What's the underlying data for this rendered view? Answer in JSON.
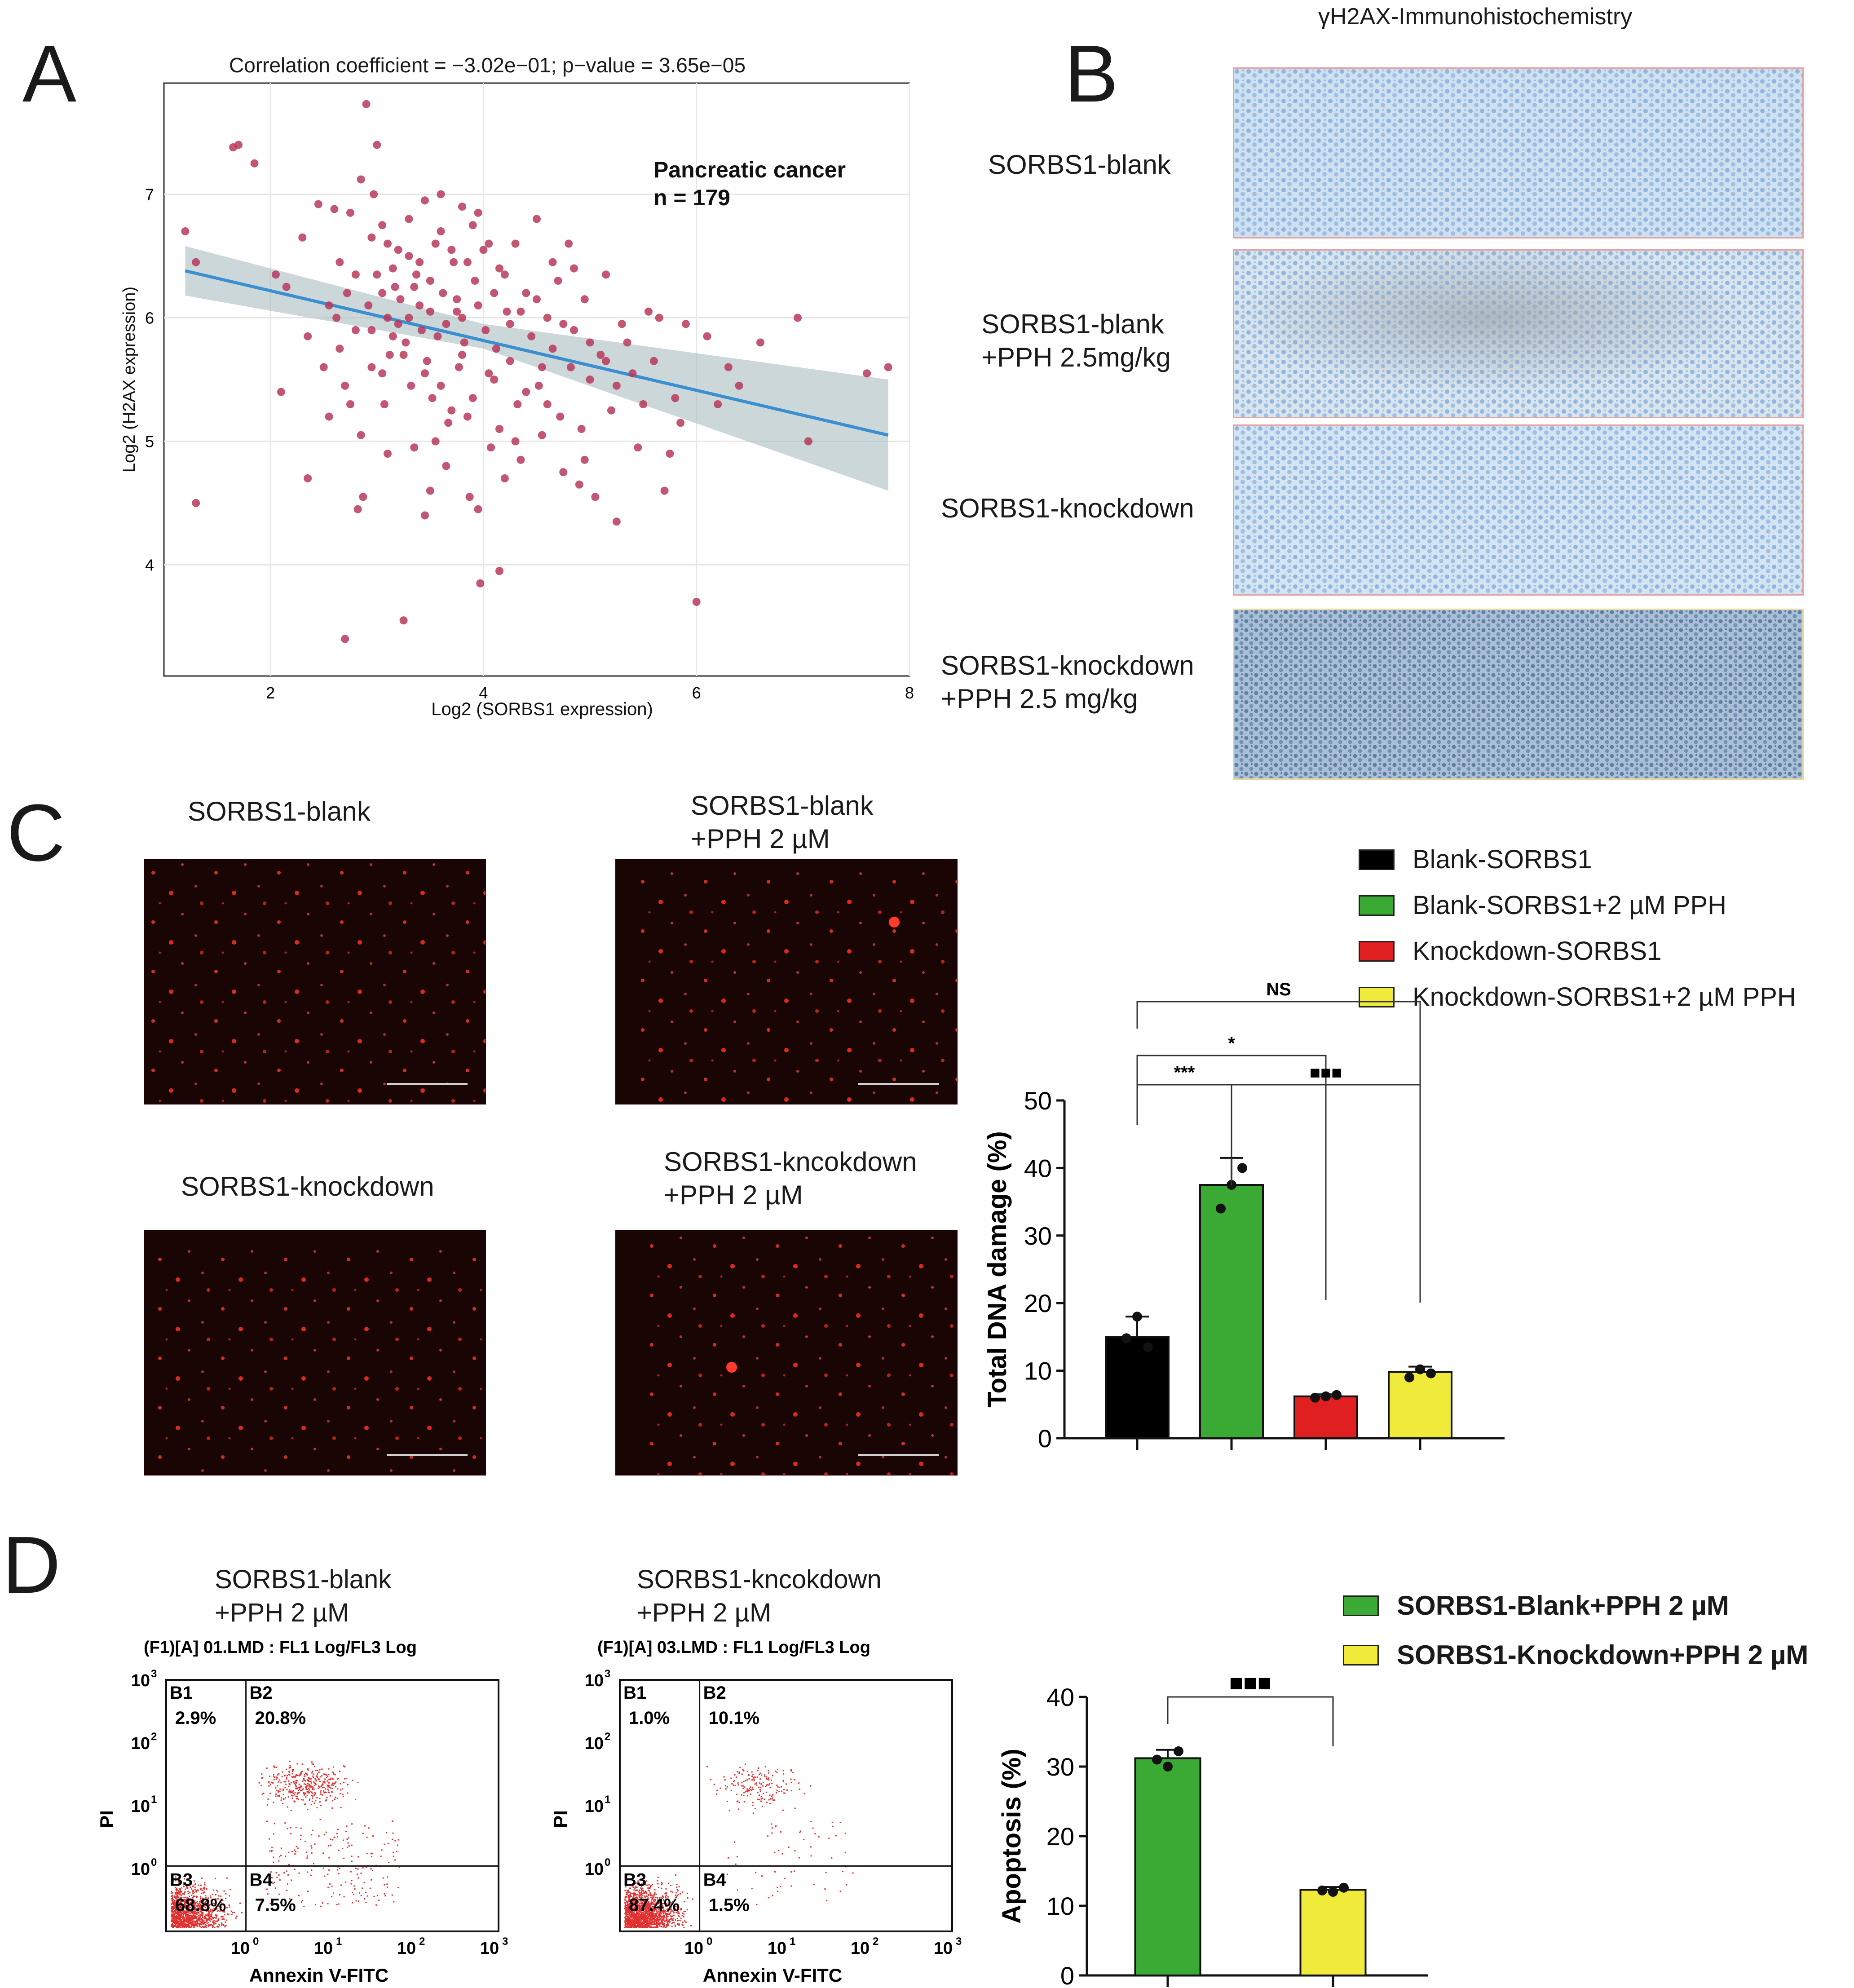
{
  "panels": {
    "a": "A",
    "b": "B",
    "c": "C",
    "d": "D"
  },
  "panel_a": {
    "title": "Correlation coefficient = −3.02e−01; p−value = 3.65e−05",
    "annotation_line1": "Pancreatic cancer",
    "annotation_line2": "n = 179",
    "ylabel": "Log2 (H2AX expression)",
    "xlabel": "Log2 (SORBS1 expression)"
  },
  "panel_b": {
    "header": "γH2AX-Immunohistochemistry",
    "rows": [
      {
        "line1": "SORBS1-blank",
        "line2": ""
      },
      {
        "line1": "SORBS1-blank",
        "line2": "+PPH 2.5mg/kg"
      },
      {
        "line1": "SORBS1-knockdown",
        "line2": ""
      },
      {
        "line1": "SORBS1-knockdown",
        "line2": "+PPH 2.5 mg/kg"
      }
    ]
  },
  "panel_c": {
    "images": [
      {
        "line1": "SORBS1-blank",
        "line2": ""
      },
      {
        "line1": "SORBS1-blank",
        "line2": "+PPH 2 µM"
      },
      {
        "line1": "SORBS1-knockdown",
        "line2": ""
      },
      {
        "line1": "SORBS1-kncokdown",
        "line2": "+PPH 2 µM"
      }
    ],
    "legend": [
      {
        "label": "Blank-SORBS1",
        "color": "#000000"
      },
      {
        "label": "Blank-SORBS1+2 µM PPH",
        "color": "#3aaa35"
      },
      {
        "label": "Knockdown-SORBS1",
        "color": "#e02020"
      },
      {
        "label": "Knockdown-SORBS1+2 µM PPH",
        "color": "#f0ea3a"
      }
    ]
  },
  "panel_d": {
    "plots": [
      {
        "line1": "SORBS1-blank",
        "line2": "+PPH 2 µM",
        "file": "(F1)[A] 01.LMD : FL1 Log/FL3 Log",
        "q": {
          "B1": "2.9%",
          "B2": "20.8%",
          "B3": "68.8%",
          "B4": "7.5%"
        }
      },
      {
        "line1": "SORBS1-kncokdown",
        "line2": "+PPH 2 µM",
        "file": "(F1)[A] 03.LMD : FL1 Log/FL3 Log",
        "q": {
          "B1": "1.0%",
          "B2": "10.1%",
          "B3": "87.4%",
          "B4": "1.5%"
        }
      }
    ],
    "quadrant_names": {
      "b1": "B1",
      "b2": "B2",
      "b3": "B3",
      "b4": "B4"
    },
    "flow_xlabel": "Annexin V-FITC",
    "flow_ylabel": "PI",
    "legend": [
      {
        "label": "SORBS1-Blank+PPH 2 µM",
        "color": "#3aaa35"
      },
      {
        "label": "SORBS1-Knockdown+PPH 2 µM",
        "color": "#f0ea3a"
      }
    ]
  },
  "chart_data": [
    {
      "id": "scatter",
      "type": "scatter",
      "title": "Correlation coefficient = −3.02e−01; p−value = 3.65e−05",
      "xlabel": "Log2 (SORBS1 expression)",
      "ylabel": "Log2 (H2AX expression)",
      "xlim": [
        1.0,
        8.0
      ],
      "ylim": [
        3.1,
        7.9
      ],
      "xticks": [
        "2",
        "4",
        "6",
        "8"
      ],
      "yticks": [
        "4",
        "5",
        "6",
        "7"
      ],
      "fit": {
        "x": [
          1.2,
          7.8
        ],
        "y": [
          6.38,
          5.05
        ]
      },
      "points": [
        [
          1.2,
          6.7
        ],
        [
          1.3,
          4.5
        ],
        [
          1.65,
          7.38
        ],
        [
          1.7,
          7.4
        ],
        [
          1.85,
          7.25
        ],
        [
          2.05,
          6.35
        ],
        [
          2.15,
          6.25
        ],
        [
          2.3,
          6.65
        ],
        [
          2.35,
          5.85
        ],
        [
          2.35,
          4.7
        ],
        [
          2.45,
          6.92
        ],
        [
          2.55,
          6.1
        ],
        [
          2.6,
          6.88
        ],
        [
          2.62,
          6.0
        ],
        [
          2.65,
          5.75
        ],
        [
          2.7,
          5.45
        ],
        [
          2.7,
          3.4
        ],
        [
          2.72,
          6.2
        ],
        [
          2.75,
          6.85
        ],
        [
          2.8,
          5.9
        ],
        [
          2.82,
          4.45
        ],
        [
          2.85,
          7.12
        ],
        [
          2.85,
          5.05
        ],
        [
          2.87,
          4.55
        ],
        [
          2.9,
          7.73
        ],
        [
          2.92,
          6.1
        ],
        [
          2.95,
          5.9
        ],
        [
          2.97,
          7.0
        ],
        [
          3.0,
          7.4
        ],
        [
          3.0,
          6.35
        ],
        [
          3.05,
          6.2
        ],
        [
          3.05,
          5.55
        ],
        [
          3.07,
          5.3
        ],
        [
          3.1,
          6.6
        ],
        [
          3.1,
          6.0
        ],
        [
          3.12,
          5.7
        ],
        [
          3.15,
          6.4
        ],
        [
          3.17,
          6.25
        ],
        [
          3.2,
          5.95
        ],
        [
          3.22,
          6.15
        ],
        [
          3.25,
          5.7
        ],
        [
          3.27,
          5.8
        ],
        [
          3.3,
          6.8
        ],
        [
          3.3,
          6.5
        ],
        [
          3.32,
          5.45
        ],
        [
          3.35,
          4.95
        ],
        [
          3.37,
          6.35
        ],
        [
          3.4,
          6.1
        ],
        [
          3.42,
          5.9
        ],
        [
          3.45,
          6.95
        ],
        [
          3.45,
          4.4
        ],
        [
          3.47,
          5.65
        ],
        [
          3.5,
          6.3
        ],
        [
          3.5,
          6.05
        ],
        [
          3.52,
          5.35
        ],
        [
          3.55,
          6.6
        ],
        [
          3.57,
          5.85
        ],
        [
          3.6,
          7.0
        ],
        [
          3.6,
          6.7
        ],
        [
          3.62,
          6.2
        ],
        [
          3.65,
          5.95
        ],
        [
          3.67,
          5.15
        ],
        [
          3.7,
          6.55
        ],
        [
          3.72,
          6.45
        ],
        [
          3.75,
          6.15
        ],
        [
          3.77,
          5.6
        ],
        [
          3.8,
          6.9
        ],
        [
          3.8,
          6.0
        ],
        [
          3.82,
          5.8
        ],
        [
          3.85,
          5.2
        ],
        [
          3.87,
          4.55
        ],
        [
          3.9,
          6.75
        ],
        [
          3.92,
          6.3
        ],
        [
          3.95,
          6.1
        ],
        [
          3.95,
          4.45
        ],
        [
          3.97,
          3.85
        ],
        [
          4.0,
          6.55
        ],
        [
          4.02,
          5.9
        ],
        [
          4.05,
          5.55
        ],
        [
          4.07,
          4.95
        ],
        [
          4.1,
          6.2
        ],
        [
          4.12,
          5.75
        ],
        [
          4.15,
          3.95
        ],
        [
          4.15,
          5.1
        ],
        [
          4.2,
          6.35
        ],
        [
          4.22,
          6.05
        ],
        [
          4.25,
          5.65
        ],
        [
          4.3,
          6.6
        ],
        [
          4.32,
          5.3
        ],
        [
          4.35,
          4.85
        ],
        [
          4.4,
          6.2
        ],
        [
          4.45,
          5.85
        ],
        [
          4.5,
          6.8
        ],
        [
          4.52,
          5.45
        ],
        [
          4.55,
          5.05
        ],
        [
          4.6,
          6.0
        ],
        [
          4.65,
          5.75
        ],
        [
          4.7,
          6.3
        ],
        [
          4.72,
          5.2
        ],
        [
          4.75,
          4.75
        ],
        [
          4.8,
          6.6
        ],
        [
          4.82,
          5.6
        ],
        [
          4.85,
          5.9
        ],
        [
          4.9,
          4.65
        ],
        [
          4.92,
          5.1
        ],
        [
          4.95,
          6.15
        ],
        [
          5.0,
          5.8
        ],
        [
          5.05,
          4.55
        ],
        [
          5.1,
          5.7
        ],
        [
          5.15,
          6.35
        ],
        [
          5.2,
          5.25
        ],
        [
          5.25,
          4.35
        ],
        [
          5.3,
          5.95
        ],
        [
          5.4,
          5.55
        ],
        [
          5.5,
          5.3
        ],
        [
          5.6,
          5.65
        ],
        [
          5.65,
          6.0
        ],
        [
          5.7,
          4.6
        ],
        [
          5.75,
          4.9
        ],
        [
          5.8,
          5.35
        ],
        [
          5.9,
          5.95
        ],
        [
          6.0,
          3.7
        ],
        [
          6.2,
          5.3
        ],
        [
          6.4,
          5.45
        ],
        [
          6.6,
          5.8
        ],
        [
          6.95,
          6.0
        ],
        [
          7.05,
          5.0
        ],
        [
          7.6,
          5.55
        ],
        [
          7.8,
          5.6
        ],
        [
          1.3,
          6.45
        ],
        [
          2.1,
          5.4
        ],
        [
          2.5,
          5.6
        ],
        [
          3.35,
          6.25
        ],
        [
          3.65,
          4.8
        ],
        [
          4.35,
          6.05
        ],
        [
          4.6,
          5.3
        ],
        [
          5.0,
          5.5
        ],
        [
          3.25,
          3.55
        ],
        [
          3.1,
          4.9
        ],
        [
          2.95,
          5.6
        ],
        [
          3.55,
          5.0
        ],
        [
          4.25,
          5.95
        ],
        [
          5.35,
          5.8
        ],
        [
          4.1,
          5.5
        ],
        [
          3.75,
          6.05
        ],
        [
          3.45,
          5.55
        ],
        [
          2.8,
          6.35
        ],
        [
          6.3,
          5.6
        ],
        [
          4.85,
          6.4
        ],
        [
          3.9,
          5.35
        ],
        [
          5.15,
          5.65
        ],
        [
          4.5,
          6.15
        ],
        [
          3.3,
          6.0
        ],
        [
          2.65,
          6.45
        ],
        [
          3.85,
          6.45
        ],
        [
          4.05,
          6.6
        ],
        [
          3.15,
          5.85
        ],
        [
          4.4,
          5.4
        ],
        [
          5.55,
          6.05
        ],
        [
          3.6,
          5.45
        ],
        [
          2.95,
          6.65
        ],
        [
          4.75,
          5.95
        ],
        [
          5.25,
          5.45
        ],
        [
          3.7,
          5.25
        ],
        [
          4.2,
          4.7
        ],
        [
          3.5,
          4.6
        ],
        [
          2.55,
          5.2
        ],
        [
          3.95,
          6.85
        ],
        [
          4.65,
          6.45
        ],
        [
          5.85,
          5.15
        ],
        [
          6.1,
          5.85
        ],
        [
          3.05,
          6.75
        ],
        [
          4.3,
          5.0
        ],
        [
          3.4,
          6.45
        ],
        [
          2.75,
          5.3
        ],
        [
          5.45,
          4.95
        ],
        [
          4.95,
          4.85
        ],
        [
          3.8,
          5.7
        ],
        [
          4.55,
          5.6
        ],
        [
          3.2,
          6.55
        ],
        [
          4.15,
          6.4
        ]
      ]
    },
    {
      "id": "dna_damage",
      "type": "bar",
      "ylabel": "Total DNA damage (%)",
      "ylim": [
        0,
        50
      ],
      "yticks": [
        "0",
        "10",
        "20",
        "30",
        "40",
        "50"
      ],
      "categories": [
        "Blank-SORBS1",
        "Blank-SORBS1+2 µM PPH",
        "Knockdown-SORBS1",
        "Knockdown-SORBS1+2 µM PPH"
      ],
      "values": [
        15,
        37.5,
        6.2,
        9.8
      ],
      "errors": [
        3,
        4,
        0.3,
        0.8
      ],
      "dots": [
        [
          14.8,
          18.0,
          13.5
        ],
        [
          34.0,
          37.5,
          40.0
        ],
        [
          6.0,
          6.2,
          6.4
        ],
        [
          9.0,
          10.2,
          9.6
        ]
      ],
      "colors": [
        "#000000",
        "#3aaa35",
        "#e02020",
        "#f0ea3a"
      ],
      "significance": [
        {
          "from": 0,
          "to": 1,
          "label": "***"
        },
        {
          "from": 0,
          "to": 2,
          "label": "*"
        },
        {
          "from": 1,
          "to": 3,
          "label": "■■■"
        },
        {
          "from": 0,
          "to": 3,
          "label": "NS"
        }
      ]
    },
    {
      "id": "apoptosis",
      "type": "bar",
      "ylabel": "Apoptosis (%)",
      "ylim": [
        0,
        40
      ],
      "yticks": [
        "0",
        "10",
        "20",
        "30",
        "40"
      ],
      "categories": [
        "SORBS1-Blank+PPH 2 µM",
        "SORBS1-Knockdown+PPH 2 µM"
      ],
      "values": [
        31.2,
        12.3
      ],
      "errors": [
        1.2,
        0.4
      ],
      "dots": [
        [
          31.0,
          30.0,
          32.2
        ],
        [
          12.2,
          12.0,
          12.6
        ]
      ],
      "colors": [
        "#3aaa35",
        "#f0ea3a"
      ],
      "significance": [
        {
          "from": 0,
          "to": 1,
          "label": "■■■"
        }
      ]
    }
  ]
}
